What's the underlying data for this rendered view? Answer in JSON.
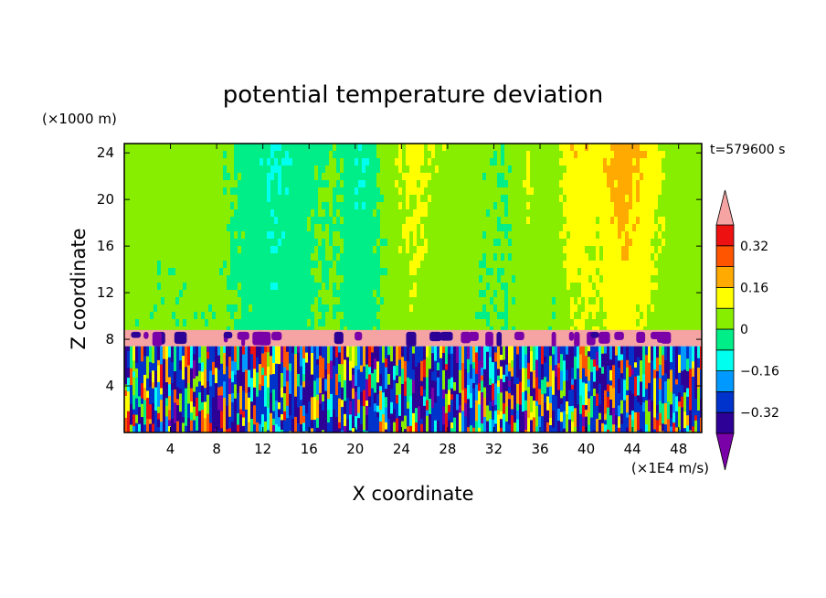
{
  "chart_data": {
    "type": "heatmap",
    "title": "potential temperature deviation",
    "xlabel": "X coordinate",
    "ylabel": "Z coordinate",
    "x_unit": "(×1E4 m/s)",
    "y_unit": "(×1000 m)",
    "time_label": "t=579600 s",
    "x_ticks": [
      4,
      8,
      12,
      16,
      20,
      24,
      28,
      32,
      36,
      40,
      44,
      48
    ],
    "y_ticks": [
      4,
      8,
      12,
      16,
      20,
      24
    ],
    "xlim": [
      0,
      50
    ],
    "ylim": [
      0,
      24.8
    ],
    "colorbar": {
      "labels": [
        "0.32",
        "0.16",
        "0",
        "−0.16",
        "−0.32"
      ],
      "label_values": [
        0.32,
        0.16,
        0,
        -0.16,
        -0.32
      ],
      "levels": [
        -0.4,
        -0.32,
        -0.24,
        -0.16,
        -0.08,
        0,
        0.08,
        0.16,
        0.24,
        0.32,
        0.4
      ],
      "colors": [
        "#7a00a8",
        "#2d0096",
        "#0033cc",
        "#0099ff",
        "#00ffee",
        "#00ee88",
        "#88ee00",
        "#ffff00",
        "#ffaa00",
        "#ff5500",
        "#ee1111",
        "#f5a3a3"
      ]
    },
    "upper_layer": {
      "z_range": [
        8.8,
        24.8
      ],
      "profile": [
        {
          "x": 0,
          "v": 0.05
        },
        {
          "x": 3,
          "v": 0.03
        },
        {
          "x": 8,
          "v": 0.04
        },
        {
          "x": 13,
          "v": -0.1
        },
        {
          "x": 15,
          "v": -0.05
        },
        {
          "x": 18,
          "v": 0.02
        },
        {
          "x": 20.5,
          "v": -0.09
        },
        {
          "x": 23,
          "v": 0.05
        },
        {
          "x": 25,
          "v": 0.12
        },
        {
          "x": 27,
          "v": 0.07
        },
        {
          "x": 30,
          "v": 0.04
        },
        {
          "x": 33,
          "v": 0.0
        },
        {
          "x": 35,
          "v": 0.08
        },
        {
          "x": 37,
          "v": 0.03
        },
        {
          "x": 39,
          "v": 0.16
        },
        {
          "x": 41,
          "v": 0.12
        },
        {
          "x": 43,
          "v": 0.22
        },
        {
          "x": 45,
          "v": 0.16
        },
        {
          "x": 47,
          "v": 0.06
        },
        {
          "x": 50,
          "v": 0.05
        }
      ]
    },
    "inversion_layer": {
      "z_range": [
        7.4,
        8.8
      ],
      "value": 0.45
    },
    "lower_layer": {
      "z_range": [
        0,
        7.4
      ],
      "value_range": [
        -0.45,
        0.4
      ]
    }
  }
}
